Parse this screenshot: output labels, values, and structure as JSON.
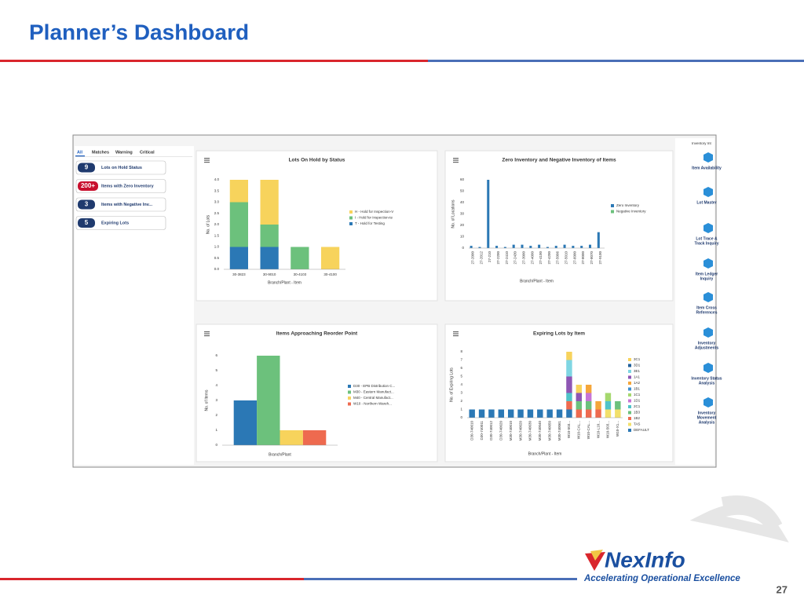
{
  "header": {
    "title": "Planner’s Dashboard"
  },
  "page_number": "27",
  "logo": {
    "name": "NexInfo",
    "tagline": "Accelerating Operational Excellence"
  },
  "sidebar": {
    "tabs": [
      "All",
      "Matches",
      "Warning",
      "Critical"
    ],
    "alerts": [
      {
        "count": "9",
        "label": "Lots on Hold Status"
      },
      {
        "count": "200+",
        "label": "Items with Zero Inventory"
      },
      {
        "count": "3",
        "label": "Items with Negative Inv..."
      },
      {
        "count": "5",
        "label": "Expiring Lots"
      }
    ]
  },
  "links": {
    "title": "Inventory Int",
    "items": [
      [
        "Item Availability"
      ],
      [
        "Lot Master"
      ],
      [
        "Lot Trace &",
        "Track Inquiry"
      ],
      [
        "Item Ledger",
        "Inquiry"
      ],
      [
        "Item Cross",
        "References"
      ],
      [
        "Inventory",
        "Adjustments"
      ],
      [
        "Inventory Status",
        "Analysis"
      ],
      [
        "Inventory",
        "Movement",
        "Analysis"
      ]
    ]
  },
  "chart_data": [
    {
      "type": "stacked_bar",
      "title": "Lots On Hold by Status",
      "x_label": "Branch/Plant - Item",
      "y_label": "No. of Lots",
      "categories": [
        "30-3823",
        "30-9010",
        "30-4103",
        "30-4100"
      ],
      "series": [
        {
          "name": "H - Hold for Inspection-V",
          "color": "#f7d35c",
          "values": [
            1,
            2,
            0,
            1
          ]
        },
        {
          "name": "I - Hold for Inspection-te",
          "color": "#6cc17c",
          "values": [
            2,
            1,
            1,
            0
          ]
        },
        {
          "name": "T - Hold for Testing",
          "color": "#2b78b5",
          "values": [
            1,
            1,
            0,
            0
          ]
        }
      ],
      "ylim": [
        0,
        4
      ],
      "yticks": [
        {
          "value": 0,
          "label": "0.0"
        },
        {
          "value": 0.5,
          "label": "0.5"
        },
        {
          "value": 1,
          "label": "1.0"
        },
        {
          "value": 1.5,
          "label": "1.5"
        },
        {
          "value": 2,
          "label": "2.0"
        },
        {
          "value": 2.5,
          "label": "2.5"
        },
        {
          "value": 3,
          "label": "3.0"
        },
        {
          "value": 3.5,
          "label": "3.5"
        },
        {
          "value": 4,
          "label": "4.0"
        }
      ],
      "grid": false
    },
    {
      "type": "bar",
      "title": "Zero Inventory and Negative Inventory of Items",
      "x_label": "Branch/Plant - Item",
      "y_label": "No. of Locations",
      "categories": [
        "27-2000",
        "27-2012",
        "27-210",
        "27-2200",
        "27-2410",
        "27-2430",
        "27-3000",
        "27-4000",
        "27-4100",
        "27-4200",
        "27-5006",
        "27-5010",
        "27-6000",
        "27-8000",
        "27-8070",
        "27-9100"
      ],
      "series": [
        {
          "name": "Zero Inventory",
          "color": "#2b78b5",
          "values": [
            2,
            1,
            60,
            2,
            1,
            3,
            3,
            2,
            3,
            1,
            2,
            3,
            2,
            2,
            3,
            14
          ]
        },
        {
          "name": "Negative Inventory",
          "color": "#6cc17c",
          "values": [
            0,
            0,
            0,
            0,
            0,
            0,
            0,
            0,
            0,
            0,
            0,
            0,
            0,
            0,
            0,
            0
          ]
        }
      ],
      "ylim": [
        0,
        60
      ],
      "yticks": [
        0,
        10,
        20,
        30,
        40,
        50,
        60
      ],
      "grid": false
    },
    {
      "type": "bar",
      "title": "Items Approaching Reorder Point",
      "x_label": "Branch/Plant",
      "y_label": "No. of Items",
      "categories": [
        null
      ],
      "series": [
        {
          "name": "D30 - EPB Distribution C...",
          "color": "#2b78b5",
          "values": [
            3
          ]
        },
        {
          "name": "M30 - Eastern Manufact...",
          "color": "#6cc17c",
          "values": [
            6
          ]
        },
        {
          "name": "M40 - Central Manufact...",
          "color": "#f7d35c",
          "values": [
            1
          ]
        },
        {
          "name": "W10 - Northern Wareh...",
          "color": "#ee6a4f",
          "values": [
            1
          ]
        }
      ],
      "ylim": [
        0,
        6
      ],
      "yticks": [
        0,
        1,
        2,
        3,
        4,
        5,
        6
      ],
      "grid": false
    },
    {
      "type": "stacked_bar",
      "title": "Expiring Lots by Item",
      "x_label": "Branch/Plant - Item",
      "y_label": "No. of Expiring Lots",
      "categories": [
        "D30-740010",
        "D30-740011",
        "D30-740012",
        "D30-740020",
        "M30-740010",
        "M30-740020",
        "M30-740030",
        "M30-740040",
        "M30-740050",
        "M30-740061",
        "W10-503...",
        "W10-CAL...",
        "W10-CAL...",
        "W10-L10...",
        "W10-503...",
        "W10-X1..."
      ],
      "series": [
        {
          "name": "3C1",
          "color": "#f7d35c",
          "values": [
            0,
            0,
            0,
            0,
            0,
            0,
            0,
            0,
            0,
            0,
            1,
            1,
            0,
            0,
            0,
            0
          ]
        },
        {
          "name": "3D1",
          "color": "#1f5f9a",
          "values": [
            0,
            0,
            0,
            0,
            0,
            0,
            0,
            0,
            0,
            0,
            0,
            0,
            0,
            0,
            0,
            0
          ]
        },
        {
          "name": "3E1",
          "color": "#7fd6e3",
          "values": [
            0,
            0,
            0,
            0,
            0,
            0,
            0,
            0,
            0,
            0,
            2,
            0,
            0,
            0,
            0,
            0
          ]
        },
        {
          "name": "1A1",
          "color": "#8e56b4",
          "values": [
            0,
            0,
            0,
            0,
            0,
            0,
            0,
            0,
            0,
            0,
            2,
            1,
            0,
            0,
            0,
            0
          ]
        },
        {
          "name": "1A2",
          "color": "#f5a63a",
          "values": [
            0,
            0,
            0,
            0,
            0,
            0,
            0,
            0,
            0,
            0,
            0,
            0,
            1,
            1,
            0,
            0
          ]
        },
        {
          "name": "1B1",
          "color": "#3d8fd0",
          "values": [
            0,
            0,
            0,
            0,
            0,
            0,
            0,
            0,
            0,
            0,
            0,
            0,
            0,
            0,
            0,
            0
          ]
        },
        {
          "name": "1C1",
          "color": "#a5d86e",
          "values": [
            0,
            0,
            0,
            0,
            0,
            0,
            0,
            0,
            0,
            0,
            0,
            0,
            0,
            0,
            1,
            0
          ]
        },
        {
          "name": "1D1",
          "color": "#c774d6",
          "values": [
            0,
            0,
            0,
            0,
            0,
            0,
            0,
            0,
            0,
            0,
            0,
            0,
            1,
            0,
            0,
            0
          ]
        },
        {
          "name": "2C1",
          "color": "#4fc3c9",
          "values": [
            0,
            0,
            0,
            0,
            0,
            0,
            0,
            0,
            0,
            0,
            1,
            0,
            0,
            0,
            1,
            0
          ]
        },
        {
          "name": "1B3",
          "color": "#6cc17c",
          "values": [
            0,
            0,
            0,
            0,
            0,
            0,
            0,
            0,
            0,
            0,
            0,
            1,
            1,
            0,
            0,
            1
          ]
        },
        {
          "name": "1B2",
          "color": "#ee6a4f",
          "values": [
            0,
            0,
            0,
            0,
            0,
            0,
            0,
            0,
            0,
            0,
            1,
            1,
            1,
            1,
            0,
            0
          ]
        },
        {
          "name": "TAS",
          "color": "#f2e06b",
          "values": [
            0,
            0,
            0,
            0,
            0,
            0,
            0,
            0,
            0,
            0,
            0,
            0,
            0,
            0,
            1,
            1
          ]
        },
        {
          "name": "DEFAULT",
          "color": "#2b78b5",
          "values": [
            1,
            1,
            1,
            1,
            1,
            1,
            1,
            1,
            1,
            1,
            1,
            0,
            0,
            0,
            0,
            0
          ]
        }
      ],
      "ylim": [
        0,
        8
      ],
      "yticks": [
        0,
        1,
        2,
        3,
        4,
        5,
        6,
        7,
        8
      ],
      "grid": false
    }
  ]
}
